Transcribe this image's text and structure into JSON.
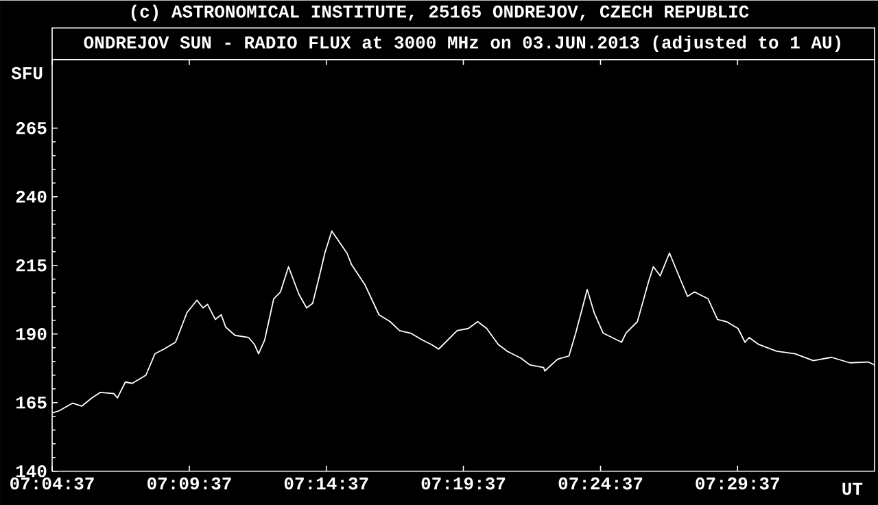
{
  "chart_data": {
    "type": "line",
    "title": "(c) ASTRONOMICAL INSTITUTE, 25165 ONDREJOV, CZECH REPUBLIC",
    "subtitle": "ONDREJOV SUN - RADIO FLUX at 3000 MHz on 03.JUN.2013 (adjusted to 1 AU)",
    "xlabel": "UT",
    "ylabel": "SFU",
    "color": "#ffffff",
    "x": [
      7.0769,
      7.0811,
      7.0894,
      7.0949,
      7.1006,
      7.1061,
      7.1144,
      7.1166,
      7.1214,
      7.1256,
      7.1339,
      7.1394,
      7.1449,
      7.1519,
      7.1589,
      7.1649,
      7.1686,
      7.1714,
      7.1761,
      7.1797,
      7.1824,
      7.1881,
      7.1964,
      7.1999,
      7.2024,
      7.2061,
      7.2116,
      7.2157,
      7.2206,
      7.2269,
      7.2316,
      7.2353,
      7.2394,
      7.2427,
      7.2469,
      7.2561,
      7.2589,
      7.2672,
      7.2756,
      7.2824,
      7.2881,
      7.2949,
      7.3019,
      7.3074,
      7.3119,
      7.3231,
      7.3299,
      7.3356,
      7.3411,
      7.3481,
      7.3536,
      7.3619,
      7.3674,
      7.3757,
      7.3764,
      7.3841,
      7.3911,
      7.3952,
      7.4022,
      7.4064,
      7.4119,
      7.4231,
      7.4257,
      7.4327,
      7.4397,
      7.4424,
      7.4466,
      7.4522,
      7.4591,
      7.4632,
      7.4674,
      7.4757,
      7.4814,
      7.4869,
      7.4939,
      7.4981,
      7.5007,
      7.5064,
      7.5174,
      7.5286,
      7.5397,
      7.5507,
      7.5619,
      7.5731,
      7.5769
    ],
    "values": [
      161.2,
      162,
      164.8,
      163.7,
      166.5,
      168.7,
      168.3,
      166.7,
      172.5,
      172,
      175,
      182.8,
      184.5,
      187,
      197.8,
      202.3,
      199.5,
      200.8,
      195.3,
      197,
      192.5,
      189.5,
      188.7,
      186.2,
      182.8,
      187.8,
      202.8,
      205.3,
      214.5,
      204.5,
      199.5,
      201.2,
      211.2,
      219.5,
      227.5,
      219.5,
      215.3,
      207.8,
      197,
      194.5,
      191.2,
      190.3,
      187.8,
      186.2,
      184.5,
      191.2,
      192,
      194.5,
      192,
      186.2,
      183.7,
      181.2,
      178.7,
      177.8,
      176.5,
      180.8,
      182,
      190.3,
      206.2,
      197.8,
      190.3,
      187,
      190.3,
      194.5,
      209.5,
      214.5,
      211.2,
      219.5,
      209.5,
      203.7,
      205.3,
      202.8,
      195.3,
      194.5,
      192,
      187,
      188.7,
      186.2,
      183.7,
      182.8,
      180.3,
      181.5,
      179.5,
      179.8,
      178.7
    ],
    "xlim": [
      7.0769,
      7.5769
    ],
    "xticks": [
      {
        "value": 7.0769,
        "label": "07:04:37"
      },
      {
        "value": 7.1603,
        "label": "07:09:37"
      },
      {
        "value": 7.2436,
        "label": "07:14:37"
      },
      {
        "value": 7.3269,
        "label": "07:19:37"
      },
      {
        "value": 7.4103,
        "label": "07:24:37"
      },
      {
        "value": 7.4936,
        "label": "07:29:37"
      }
    ],
    "ylim": [
      140,
      290
    ],
    "yticks": [
      140,
      165,
      190,
      215,
      240,
      265
    ]
  }
}
